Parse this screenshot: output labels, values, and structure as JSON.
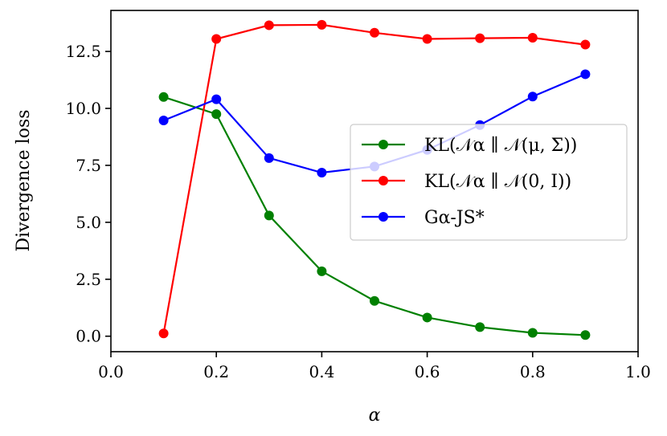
{
  "chart_data": {
    "type": "line",
    "title": "",
    "xlabel": "α",
    "ylabel": "Divergence loss",
    "xlim": [
      0.0,
      1.0
    ],
    "ylim": [
      -0.68,
      14.3
    ],
    "xticks": [
      0.0,
      0.2,
      0.4,
      0.6,
      0.8,
      1.0
    ],
    "xtick_labels": [
      "0.0",
      "0.2",
      "0.4",
      "0.6",
      "0.8",
      "1.0"
    ],
    "yticks": [
      0.0,
      2.5,
      5.0,
      7.5,
      10.0,
      12.5
    ],
    "ytick_labels": [
      "0.0",
      "2.5",
      "5.0",
      "7.5",
      "10.0",
      "12.5"
    ],
    "grid": false,
    "legend_position": "center-right",
    "x": [
      0.1,
      0.2,
      0.3,
      0.4,
      0.5,
      0.6,
      0.7,
      0.8,
      0.9
    ],
    "series": [
      {
        "name": "KL(𝒩α ∥ 𝒩(μ, Σ))",
        "color": "#008000",
        "values": [
          10.5,
          9.75,
          5.3,
          2.85,
          1.55,
          0.82,
          0.4,
          0.15,
          0.05
        ]
      },
      {
        "name": "KL(𝒩α ∥ 𝒩(0, I))",
        "color": "#ff0000",
        "values": [
          0.12,
          13.05,
          13.65,
          13.67,
          13.32,
          13.05,
          13.08,
          13.1,
          12.8
        ]
      },
      {
        "name": "Gα-JS*",
        "color": "#0000ff",
        "values": [
          9.47,
          10.4,
          7.82,
          7.18,
          7.45,
          8.18,
          9.27,
          10.52,
          11.5
        ]
      }
    ]
  }
}
